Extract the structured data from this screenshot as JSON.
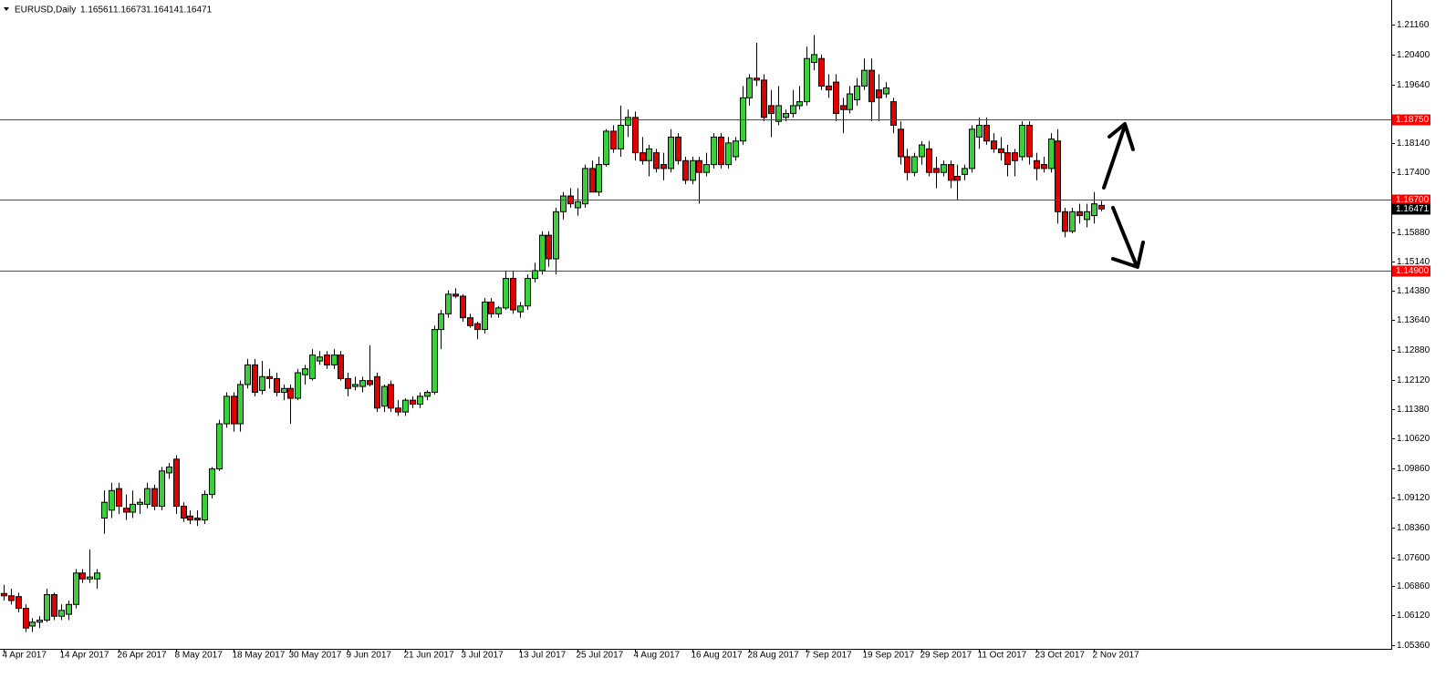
{
  "chart_data": {
    "type": "candlestick",
    "symbol": "EURUSD,Daily",
    "up_color": "#3ccf3c",
    "down_color": "#e00000",
    "level_color": "#ff0000",
    "current_color": "#000000",
    "ylim": [
      1.0527,
      1.2179
    ],
    "yticks": [
      {
        "value": 1.2116,
        "label": "1.21160"
      },
      {
        "value": 1.204,
        "label": "1.20400"
      },
      {
        "value": 1.1964,
        "label": "1.19640"
      },
      {
        "value": 1.1814,
        "label": "1.18140"
      },
      {
        "value": 1.174,
        "label": "1.17400"
      },
      {
        "value": 1.1588,
        "label": "1.15880"
      },
      {
        "value": 1.1514,
        "label": "1.15140"
      },
      {
        "value": 1.1438,
        "label": "1.14380"
      },
      {
        "value": 1.1364,
        "label": "1.13640"
      },
      {
        "value": 1.1288,
        "label": "1.12880"
      },
      {
        "value": 1.1212,
        "label": "1.12120"
      },
      {
        "value": 1.1138,
        "label": "1.11380"
      },
      {
        "value": 1.1062,
        "label": "1.10620"
      },
      {
        "value": 1.0986,
        "label": "1.09860"
      },
      {
        "value": 1.0912,
        "label": "1.09120"
      },
      {
        "value": 1.0836,
        "label": "1.08360"
      },
      {
        "value": 1.076,
        "label": "1.07600"
      },
      {
        "value": 1.0686,
        "label": "1.06860"
      },
      {
        "value": 1.0612,
        "label": "1.06120"
      },
      {
        "value": 1.0536,
        "label": "1.05360"
      }
    ],
    "levels": [
      {
        "value": 1.1875,
        "label": "1.18750"
      },
      {
        "value": 1.167,
        "label": "1.16700"
      },
      {
        "value": 1.149,
        "label": "1.14900"
      }
    ],
    "categories": [
      "4 Apr 2017",
      null,
      null,
      null,
      null,
      null,
      null,
      null,
      "14 Apr 2017",
      null,
      null,
      null,
      null,
      null,
      null,
      null,
      "26 Apr 2017",
      null,
      null,
      null,
      null,
      null,
      null,
      null,
      "8 May 2017",
      null,
      null,
      null,
      null,
      null,
      null,
      null,
      "18 May 2017",
      null,
      null,
      null,
      null,
      null,
      null,
      null,
      "30 May 2017",
      null,
      null,
      null,
      null,
      null,
      null,
      null,
      "9 Jun 2017",
      null,
      null,
      null,
      null,
      null,
      null,
      null,
      "21 Jun 2017",
      null,
      null,
      null,
      null,
      null,
      null,
      null,
      "3 Jul 2017",
      null,
      null,
      null,
      null,
      null,
      null,
      null,
      "13 Jul 2017",
      null,
      null,
      null,
      null,
      null,
      null,
      null,
      "25 Jul 2017",
      null,
      null,
      null,
      null,
      null,
      null,
      null,
      "4 Aug 2017",
      null,
      null,
      null,
      null,
      null,
      null,
      null,
      "16 Aug 2017",
      null,
      null,
      null,
      null,
      null,
      null,
      null,
      "28 Aug 2017",
      null,
      null,
      null,
      null,
      null,
      null,
      null,
      "7 Sep 2017",
      null,
      null,
      null,
      null,
      null,
      null,
      null,
      "19 Sep 2017",
      null,
      null,
      null,
      null,
      null,
      null,
      null,
      "29 Sep 2017",
      null,
      null,
      null,
      null,
      null,
      null,
      null,
      "11 Oct 2017",
      null,
      null,
      null,
      null,
      null,
      null,
      null,
      "23 Oct 2017",
      null,
      null,
      null,
      null,
      null,
      null,
      null,
      "2 Nov 2017",
      null
    ],
    "ohlc": [
      [
        1.0668,
        1.069,
        1.065,
        1.0662
      ],
      [
        1.0662,
        1.068,
        1.064,
        1.065
      ],
      [
        1.066,
        1.067,
        1.062,
        1.063
      ],
      [
        1.063,
        1.064,
        1.057,
        1.058
      ],
      [
        1.0585,
        1.0605,
        1.057,
        1.0595
      ],
      [
        1.0595,
        1.061,
        1.058,
        1.06
      ],
      [
        1.06,
        1.068,
        1.0595,
        1.0665
      ],
      [
        1.0665,
        1.067,
        1.06,
        1.061
      ],
      [
        1.061,
        1.064,
        1.06,
        1.0625
      ],
      [
        1.0615,
        1.065,
        1.06,
        1.064
      ],
      [
        1.064,
        1.073,
        1.063,
        1.072
      ],
      [
        1.072,
        1.073,
        1.0695,
        1.0705
      ],
      [
        1.0705,
        1.078,
        1.0695,
        1.071
      ],
      [
        1.0705,
        1.073,
        1.068,
        1.072
      ],
      [
        1.086,
        1.093,
        1.082,
        1.09
      ],
      [
        1.088,
        1.095,
        1.086,
        1.093
      ],
      [
        1.0935,
        1.095,
        1.087,
        1.089
      ],
      [
        1.0885,
        1.092,
        1.0855,
        1.0875
      ],
      [
        1.0875,
        1.093,
        1.086,
        1.0895
      ],
      [
        1.0895,
        1.091,
        1.087,
        1.09
      ],
      [
        1.0895,
        1.095,
        1.0885,
        1.0935
      ],
      [
        1.0935,
        1.0945,
        1.088,
        1.089
      ],
      [
        1.089,
        1.099,
        1.088,
        1.098
      ],
      [
        1.0975,
        1.1,
        1.096,
        1.099
      ],
      [
        1.101,
        1.102,
        1.087,
        1.089
      ],
      [
        1.089,
        1.09,
        1.085,
        1.086
      ],
      [
        1.0865,
        1.088,
        1.0845,
        1.0855
      ],
      [
        1.086,
        1.088,
        1.084,
        1.0855
      ],
      [
        1.0855,
        1.093,
        1.0845,
        1.092
      ],
      [
        1.092,
        1.099,
        1.091,
        1.0985
      ],
      [
        1.0985,
        1.111,
        1.098,
        1.11
      ],
      [
        1.11,
        1.118,
        1.109,
        1.117
      ],
      [
        1.117,
        1.118,
        1.108,
        1.11
      ],
      [
        1.11,
        1.121,
        1.108,
        1.12
      ],
      [
        1.12,
        1.1265,
        1.119,
        1.125
      ],
      [
        1.125,
        1.1265,
        1.117,
        1.118
      ],
      [
        1.1185,
        1.126,
        1.1175,
        1.122
      ],
      [
        1.122,
        1.124,
        1.119,
        1.1215
      ],
      [
        1.1215,
        1.123,
        1.117,
        1.118
      ],
      [
        1.118,
        1.12,
        1.116,
        1.119
      ],
      [
        1.119,
        1.12,
        1.11,
        1.1165
      ],
      [
        1.1165,
        1.124,
        1.116,
        1.123
      ],
      [
        1.1225,
        1.125,
        1.12,
        1.124
      ],
      [
        1.1215,
        1.129,
        1.121,
        1.1275
      ],
      [
        1.126,
        1.1285,
        1.125,
        1.127
      ],
      [
        1.1275,
        1.1285,
        1.124,
        1.125
      ],
      [
        1.125,
        1.129,
        1.124,
        1.1275
      ],
      [
        1.1275,
        1.1285,
        1.121,
        1.1215
      ],
      [
        1.1215,
        1.123,
        1.117,
        1.119
      ],
      [
        1.1195,
        1.122,
        1.1185,
        1.12
      ],
      [
        1.1195,
        1.122,
        1.118,
        1.121
      ],
      [
        1.121,
        1.13,
        1.1195,
        1.12
      ],
      [
        1.122,
        1.123,
        1.113,
        1.114
      ],
      [
        1.1145,
        1.12,
        1.113,
        1.1195
      ],
      [
        1.12,
        1.121,
        1.113,
        1.114
      ],
      [
        1.114,
        1.116,
        1.112,
        1.113
      ],
      [
        1.113,
        1.1165,
        1.112,
        1.116
      ],
      [
        1.116,
        1.117,
        1.114,
        1.115
      ],
      [
        1.115,
        1.118,
        1.114,
        1.117
      ],
      [
        1.117,
        1.1185,
        1.116,
        1.118
      ],
      [
        1.118,
        1.135,
        1.1175,
        1.134
      ],
      [
        1.134,
        1.139,
        1.129,
        1.138
      ],
      [
        1.138,
        1.144,
        1.137,
        1.143
      ],
      [
        1.143,
        1.1445,
        1.142,
        1.1425
      ],
      [
        1.1425,
        1.143,
        1.136,
        1.137
      ],
      [
        1.137,
        1.138,
        1.1345,
        1.135
      ],
      [
        1.1355,
        1.136,
        1.1315,
        1.134
      ],
      [
        1.134,
        1.142,
        1.133,
        1.141
      ],
      [
        1.141,
        1.142,
        1.137,
        1.138
      ],
      [
        1.138,
        1.14,
        1.137,
        1.1395
      ],
      [
        1.1395,
        1.149,
        1.139,
        1.147
      ],
      [
        1.147,
        1.149,
        1.138,
        1.139
      ],
      [
        1.1385,
        1.141,
        1.137,
        1.14
      ],
      [
        1.14,
        1.148,
        1.139,
        1.147
      ],
      [
        1.147,
        1.151,
        1.146,
        1.149
      ],
      [
        1.149,
        1.159,
        1.148,
        1.158
      ],
      [
        1.158,
        1.159,
        1.15,
        1.152
      ],
      [
        1.152,
        1.165,
        1.148,
        1.164
      ],
      [
        1.164,
        1.169,
        1.162,
        1.168
      ],
      [
        1.168,
        1.17,
        1.165,
        1.166
      ],
      [
        1.165,
        1.17,
        1.163,
        1.1665
      ],
      [
        1.166,
        1.176,
        1.165,
        1.175
      ],
      [
        1.175,
        1.177,
        1.169,
        1.169
      ],
      [
        1.169,
        1.178,
        1.168,
        1.176
      ],
      [
        1.176,
        1.185,
        1.1755,
        1.1845
      ],
      [
        1.1845,
        1.186,
        1.179,
        1.18
      ],
      [
        1.18,
        1.191,
        1.178,
        1.186
      ],
      [
        1.186,
        1.19,
        1.183,
        1.188
      ],
      [
        1.188,
        1.1895,
        1.177,
        1.179
      ],
      [
        1.179,
        1.183,
        1.176,
        1.177
      ],
      [
        1.177,
        1.181,
        1.173,
        1.18
      ],
      [
        1.179,
        1.18,
        1.174,
        1.175
      ],
      [
        1.176,
        1.179,
        1.172,
        1.175
      ],
      [
        1.175,
        1.185,
        1.174,
        1.183
      ],
      [
        1.183,
        1.184,
        1.176,
        1.177
      ],
      [
        1.177,
        1.178,
        1.171,
        1.172
      ],
      [
        1.172,
        1.178,
        1.171,
        1.177
      ],
      [
        1.177,
        1.178,
        1.166,
        1.174
      ],
      [
        1.174,
        1.179,
        1.173,
        1.176
      ],
      [
        1.176,
        1.184,
        1.175,
        1.183
      ],
      [
        1.183,
        1.184,
        1.175,
        1.176
      ],
      [
        1.176,
        1.183,
        1.175,
        1.1815
      ],
      [
        1.178,
        1.183,
        1.177,
        1.182
      ],
      [
        1.182,
        1.196,
        1.181,
        1.193
      ],
      [
        1.193,
        1.199,
        1.191,
        1.198
      ],
      [
        1.198,
        1.207,
        1.196,
        1.1975
      ],
      [
        1.1975,
        1.199,
        1.187,
        1.188
      ],
      [
        1.191,
        1.195,
        1.183,
        1.189
      ],
      [
        1.187,
        1.196,
        1.186,
        1.191
      ],
      [
        1.188,
        1.19,
        1.187,
        1.189
      ],
      [
        1.189,
        1.195,
        1.188,
        1.191
      ],
      [
        1.191,
        1.196,
        1.19,
        1.192
      ],
      [
        1.192,
        1.206,
        1.191,
        1.203
      ],
      [
        1.202,
        1.209,
        1.2,
        1.204
      ],
      [
        1.203,
        1.204,
        1.195,
        1.196
      ],
      [
        1.196,
        1.199,
        1.193,
        1.195
      ],
      [
        1.197,
        1.199,
        1.187,
        1.189
      ],
      [
        1.191,
        1.193,
        1.184,
        1.19
      ],
      [
        1.19,
        1.196,
        1.189,
        1.194
      ],
      [
        1.1925,
        1.198,
        1.191,
        1.196
      ],
      [
        1.196,
        1.203,
        1.195,
        1.2
      ],
      [
        1.2,
        1.203,
        1.187,
        1.192
      ],
      [
        1.195,
        1.199,
        1.187,
        1.193
      ],
      [
        1.194,
        1.197,
        1.193,
        1.1955
      ],
      [
        1.192,
        1.193,
        1.184,
        1.186
      ],
      [
        1.185,
        1.187,
        1.176,
        1.178
      ],
      [
        1.178,
        1.18,
        1.172,
        1.174
      ],
      [
        1.174,
        1.179,
        1.173,
        1.178
      ],
      [
        1.178,
        1.182,
        1.176,
        1.181
      ],
      [
        1.18,
        1.182,
        1.173,
        1.174
      ],
      [
        1.175,
        1.178,
        1.17,
        1.174
      ],
      [
        1.174,
        1.177,
        1.173,
        1.176
      ],
      [
        1.176,
        1.177,
        1.17,
        1.172
      ],
      [
        1.173,
        1.176,
        1.167,
        1.172
      ],
      [
        1.1735,
        1.176,
        1.172,
        1.175
      ],
      [
        1.175,
        1.186,
        1.174,
        1.185
      ],
      [
        1.183,
        1.188,
        1.18,
        1.186
      ],
      [
        1.186,
        1.188,
        1.181,
        1.182
      ],
      [
        1.182,
        1.184,
        1.179,
        1.18
      ],
      [
        1.18,
        1.183,
        1.177,
        1.179
      ],
      [
        1.179,
        1.181,
        1.173,
        1.176
      ],
      [
        1.179,
        1.18,
        1.173,
        1.177
      ],
      [
        1.178,
        1.187,
        1.177,
        1.186
      ],
      [
        1.186,
        1.187,
        1.176,
        1.178
      ],
      [
        1.177,
        1.179,
        1.172,
        1.175
      ],
      [
        1.176,
        1.178,
        1.174,
        1.175
      ],
      [
        1.175,
        1.184,
        1.174,
        1.1825
      ],
      [
        1.182,
        1.185,
        1.161,
        1.164
      ],
      [
        1.164,
        1.165,
        1.1575,
        1.159
      ],
      [
        1.159,
        1.165,
        1.1585,
        1.164
      ],
      [
        1.164,
        1.166,
        1.161,
        1.163
      ],
      [
        1.162,
        1.166,
        1.16,
        1.164
      ],
      [
        1.163,
        1.169,
        1.161,
        1.166
      ],
      [
        1.16561,
        1.16673,
        1.16414,
        1.16471
      ]
    ]
  }
}
